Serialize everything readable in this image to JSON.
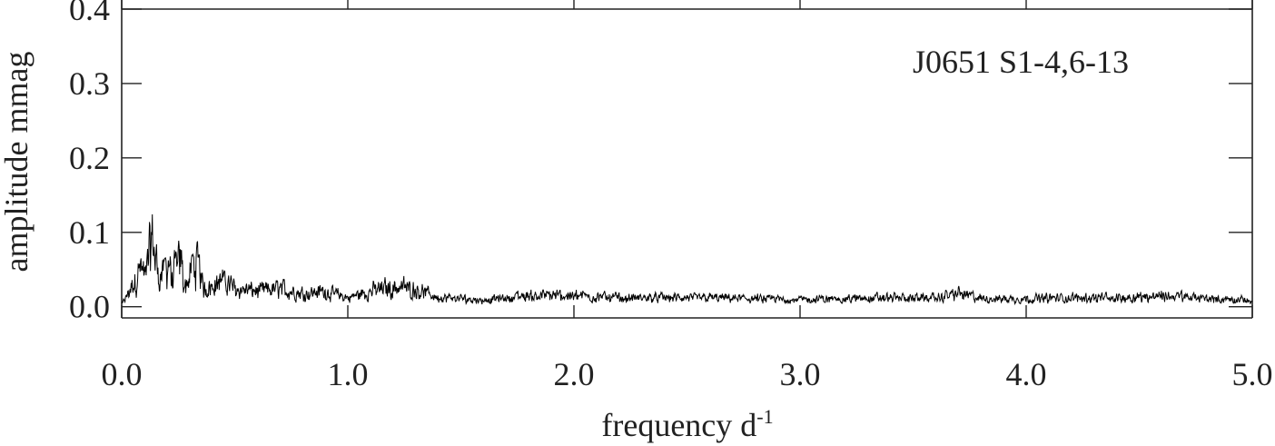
{
  "chart_data": {
    "type": "line",
    "title": "",
    "annotation": "J0651 S1-4,6-13",
    "xlabel": "frequency d",
    "xlabel_superscript": "-1",
    "ylabel": "amplitude mmag",
    "xlim": [
      0.0,
      5.0
    ],
    "ylim": [
      -0.015,
      0.4
    ],
    "x_ticks": [
      0.0,
      1.0,
      2.0,
      3.0,
      4.0,
      5.0
    ],
    "x_tick_labels": [
      "0.0",
      "1.0",
      "2.0",
      "3.0",
      "4.0",
      "5.0"
    ],
    "y_ticks": [
      0.0,
      0.1,
      0.2,
      0.3,
      0.4
    ],
    "y_tick_labels": [
      "0.0",
      "0.1",
      "0.2",
      "0.3",
      "0.4"
    ],
    "grid": false,
    "line_color": "#000000",
    "series": [
      {
        "x": [
          0.0,
          0.05,
          0.08,
          0.1,
          0.12,
          0.13,
          0.14,
          0.16,
          0.18,
          0.2,
          0.21,
          0.22,
          0.24,
          0.26,
          0.27,
          0.29,
          0.31,
          0.33,
          0.34,
          0.36,
          0.4,
          0.45,
          0.5,
          0.6,
          0.7,
          0.8,
          0.9,
          1.0,
          1.1,
          1.2,
          1.3,
          1.4,
          1.6,
          1.8,
          2.0,
          2.2,
          2.4,
          2.6,
          2.8,
          3.0,
          3.2,
          3.4,
          3.6,
          3.7,
          3.8,
          4.0,
          4.2,
          4.4,
          4.6,
          4.8,
          5.0
        ],
        "y": [
          0.005,
          0.05,
          0.09,
          0.06,
          0.12,
          0.145,
          0.14,
          0.07,
          0.08,
          0.095,
          0.1,
          0.05,
          0.09,
          0.105,
          0.06,
          0.05,
          0.09,
          0.1,
          0.09,
          0.04,
          0.05,
          0.06,
          0.04,
          0.035,
          0.04,
          0.03,
          0.035,
          0.02,
          0.035,
          0.045,
          0.04,
          0.02,
          0.015,
          0.025,
          0.025,
          0.02,
          0.02,
          0.02,
          0.018,
          0.016,
          0.018,
          0.02,
          0.02,
          0.03,
          0.018,
          0.018,
          0.02,
          0.02,
          0.025,
          0.018,
          0.015
        ]
      }
    ]
  }
}
